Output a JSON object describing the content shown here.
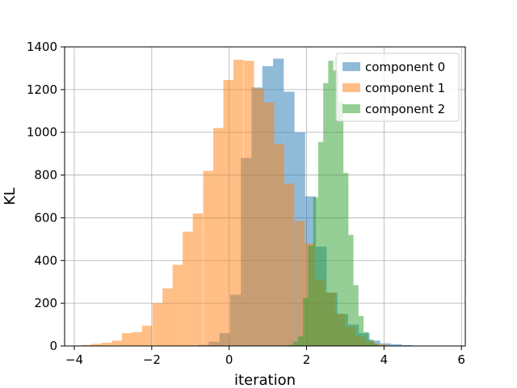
{
  "chart_data": {
    "type": "histogram",
    "title": "",
    "xlabel": "iteration",
    "ylabel": "KL",
    "xlim": [
      -4.25,
      6.1
    ],
    "ylim": [
      0,
      1400
    ],
    "xticks": [
      -4,
      -2,
      0,
      2,
      4,
      6
    ],
    "xtick_labels": [
      "−4",
      "−2",
      "0",
      "2",
      "4",
      "6"
    ],
    "yticks": [
      0,
      200,
      400,
      600,
      800,
      1000,
      1200,
      1400
    ],
    "ytick_labels": [
      "0",
      "200",
      "400",
      "600",
      "800",
      "1000",
      "1200",
      "1400"
    ],
    "grid": true,
    "legend_position": "top-right",
    "bar_alpha": 0.5,
    "series": [
      {
        "name": "component 0",
        "color": "#1f77b4",
        "bin_width": 0.277,
        "bins": [
          [
            -0.805,
            5
          ],
          [
            -0.528,
            20
          ],
          [
            -0.251,
            60
          ],
          [
            0.026,
            240
          ],
          [
            0.303,
            880
          ],
          [
            0.58,
            1210
          ],
          [
            0.857,
            1310
          ],
          [
            1.134,
            1345
          ],
          [
            1.411,
            1190
          ],
          [
            1.688,
            1000
          ],
          [
            1.965,
            700
          ],
          [
            2.242,
            465
          ],
          [
            2.519,
            250
          ],
          [
            2.796,
            150
          ],
          [
            3.073,
            100
          ],
          [
            3.35,
            60
          ],
          [
            3.627,
            25
          ],
          [
            3.904,
            12
          ],
          [
            4.181,
            8
          ],
          [
            4.458,
            4
          ]
        ]
      },
      {
        "name": "component 1",
        "color": "#ff7f0e",
        "bin_width": 0.262,
        "bins": [
          [
            -3.82,
            5
          ],
          [
            -3.56,
            10
          ],
          [
            -3.3,
            15
          ],
          [
            -3.03,
            25
          ],
          [
            -2.77,
            60
          ],
          [
            -2.51,
            65
          ],
          [
            -2.25,
            95
          ],
          [
            -1.98,
            200
          ],
          [
            -1.72,
            270
          ],
          [
            -1.46,
            380
          ],
          [
            -1.2,
            535
          ],
          [
            -0.94,
            620
          ],
          [
            -0.67,
            820
          ],
          [
            -0.41,
            1020
          ],
          [
            -0.15,
            1245
          ],
          [
            0.11,
            1340
          ],
          [
            0.38,
            1335
          ],
          [
            0.64,
            1205
          ],
          [
            0.9,
            1140
          ],
          [
            1.16,
            945
          ],
          [
            1.42,
            760
          ],
          [
            1.69,
            585
          ],
          [
            1.95,
            480
          ],
          [
            2.21,
            310
          ],
          [
            2.47,
            250
          ],
          [
            2.73,
            150
          ],
          [
            3.0,
            90
          ],
          [
            3.26,
            45
          ],
          [
            3.52,
            20
          ],
          [
            3.78,
            8
          ]
        ]
      },
      {
        "name": "component 2",
        "color": "#2ca02c",
        "bin_width": 0.131,
        "bins": [
          [
            1.52,
            5
          ],
          [
            1.65,
            20
          ],
          [
            1.78,
            45
          ],
          [
            1.91,
            225
          ],
          [
            2.04,
            470
          ],
          [
            2.17,
            695
          ],
          [
            2.3,
            955
          ],
          [
            2.43,
            1230
          ],
          [
            2.56,
            1335
          ],
          [
            2.69,
            1290
          ],
          [
            2.82,
            1145
          ],
          [
            2.95,
            810
          ],
          [
            3.08,
            520
          ],
          [
            3.21,
            285
          ],
          [
            3.34,
            140
          ],
          [
            3.47,
            65
          ],
          [
            3.6,
            30
          ],
          [
            3.73,
            10
          ],
          [
            3.86,
            3
          ]
        ]
      }
    ]
  }
}
